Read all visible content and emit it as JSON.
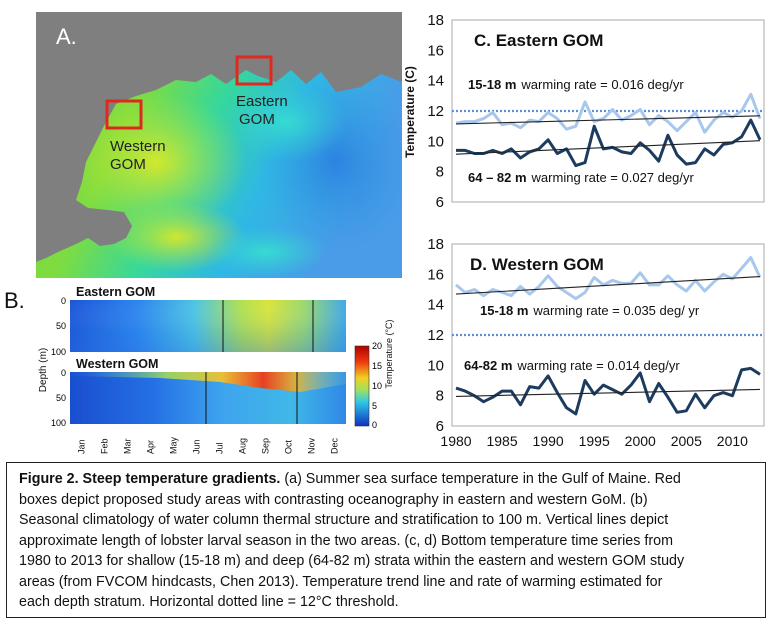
{
  "panel_a": {
    "letter": "A.",
    "eastern_label_1": "Eastern",
    "eastern_label_2": "GOM",
    "western_label_1": "Western",
    "western_label_2": "GOM",
    "colors": {
      "land": "#7f7f7f",
      "box": "#e0281e"
    }
  },
  "panel_b": {
    "letter": "B.",
    "east_title": "Eastern GOM",
    "west_title": "Western  GOM",
    "ylabel": "Depth (m)",
    "yticks": [
      "0",
      "50",
      "100"
    ],
    "months": [
      "Jan",
      "Feb",
      "Mar",
      "Apr",
      "May",
      "Jun",
      "Jul",
      "Aug",
      "Sep",
      "Oct",
      "Nov",
      "Dec"
    ],
    "colorbar_title": "Temperature (°C)",
    "colorbar_ticks": [
      "20",
      "15",
      "10",
      "5",
      "0"
    ]
  },
  "chart_data": [
    {
      "type": "line",
      "title": "C. Eastern GOM",
      "ylabel": "Temperature (C)",
      "ylim": [
        6,
        18
      ],
      "yticks": [
        6,
        8,
        10,
        12,
        14,
        16,
        18
      ],
      "xlim": [
        1980,
        2013
      ],
      "threshold": 12,
      "labels": {
        "shallow_depth": "15-18 m",
        "shallow_rate": "warming rate = 0.016 deg/yr",
        "deep_depth": "64 – 82 m",
        "deep_rate": "warming rate =  0.027 deg/yr"
      },
      "x": [
        1980,
        1981,
        1982,
        1983,
        1984,
        1985,
        1986,
        1987,
        1988,
        1989,
        1990,
        1991,
        1992,
        1993,
        1994,
        1995,
        1996,
        1997,
        1998,
        1999,
        2000,
        2001,
        2002,
        2003,
        2004,
        2005,
        2006,
        2007,
        2008,
        2009,
        2010,
        2011,
        2012,
        2013
      ],
      "series": [
        {
          "values": [
            11.2,
            11.3,
            11.3,
            11.5,
            11.9,
            11.1,
            11.2,
            10.9,
            11.4,
            11.3,
            11.9,
            11.5,
            10.8,
            11.0,
            12.6,
            11.3,
            11.5,
            12.1,
            11.4,
            11.7,
            12.1,
            11.1,
            11.7,
            11.3,
            10.7,
            11.3,
            11.9,
            10.6,
            11.4,
            11.9,
            11.6,
            12.0,
            13.1,
            11.5
          ],
          "color": "#a7c7ec"
        },
        {
          "values": [
            9.4,
            9.4,
            9.2,
            9.2,
            9.4,
            9.2,
            9.5,
            8.9,
            9.3,
            9.5,
            10.1,
            9.2,
            9.5,
            8.4,
            8.6,
            11.0,
            9.5,
            9.6,
            9.3,
            9.2,
            9.9,
            9.4,
            8.7,
            10.4,
            9.1,
            8.5,
            8.6,
            9.5,
            9.1,
            9.8,
            9.9,
            10.3,
            11.4,
            10.1
          ],
          "color": "#1d3b5e"
        }
      ],
      "trend_shallow": [
        11.15,
        11.68
      ],
      "trend_deep": [
        9.15,
        10.04
      ]
    },
    {
      "type": "line",
      "title": "D. Western GOM",
      "ylim": [
        6,
        18
      ],
      "yticks": [
        6,
        8,
        10,
        12,
        14,
        16,
        18
      ],
      "xlim": [
        1980,
        2013
      ],
      "xticks": [
        1980,
        1985,
        1990,
        1995,
        2000,
        2005,
        2010
      ],
      "threshold": 12,
      "labels": {
        "shallow_depth": "15-18 m",
        "shallow_rate": "warming rate = 0.035 deg/ yr",
        "deep_depth": "64-82 m",
        "deep_rate": "warming rate = 0.014 deg/yr"
      },
      "x": [
        1980,
        1981,
        1982,
        1983,
        1984,
        1985,
        1986,
        1987,
        1988,
        1989,
        1990,
        1991,
        1992,
        1993,
        1994,
        1995,
        1996,
        1997,
        1998,
        1999,
        2000,
        2001,
        2002,
        2003,
        2004,
        2005,
        2006,
        2007,
        2008,
        2009,
        2010,
        2011,
        2012,
        2013
      ],
      "series": [
        {
          "values": [
            15.3,
            14.8,
            15.0,
            14.6,
            15.0,
            14.8,
            14.6,
            15.2,
            14.7,
            15.2,
            15.9,
            15.2,
            14.8,
            14.4,
            14.8,
            15.8,
            15.3,
            15.6,
            15.4,
            15.4,
            16.1,
            15.3,
            15.3,
            15.9,
            15.3,
            14.9,
            15.6,
            14.9,
            15.5,
            16.0,
            15.7,
            16.4,
            17.1,
            15.8
          ],
          "color": "#a7c7ec"
        },
        {
          "values": [
            8.5,
            8.3,
            8.0,
            7.6,
            7.9,
            8.3,
            8.3,
            7.4,
            8.6,
            8.5,
            9.3,
            8.2,
            7.2,
            6.8,
            9.0,
            8.1,
            8.7,
            8.4,
            8.1,
            8.7,
            9.5,
            7.6,
            8.8,
            7.9,
            6.9,
            7.0,
            8.1,
            7.2,
            8.0,
            8.2,
            8.0,
            9.7,
            9.8,
            9.4
          ],
          "color": "#1d3b5e"
        }
      ],
      "trend_shallow": [
        14.7,
        15.85
      ],
      "trend_deep": [
        7.95,
        8.41
      ]
    }
  ],
  "caption": {
    "bold": "Figure 2. Steep temperature gradients.",
    "line1": " (a) Summer sea surface temperature in the Gulf of Maine. Red",
    "line2": "boxes depict proposed study areas with contrasting oceanography in eastern and western GoM. (b)",
    "line3": "Seasonal climatology of water column thermal structure and stratification to 100 m.  Vertical lines depict",
    "line4": "approximate length of lobster larval season in the two areas. (c, d) Bottom temperature time series from",
    "line5": "1980 to 2013 for shallow (15-18 m) and deep (64-82 m) strata within the eastern and western GOM study",
    "line6": "areas (from FVCOM hindcasts, Chen 2013).  Temperature trend line and rate of warming estimated for",
    "line7": "each depth stratum.  Horizontal dotted line = 12°C threshold."
  }
}
